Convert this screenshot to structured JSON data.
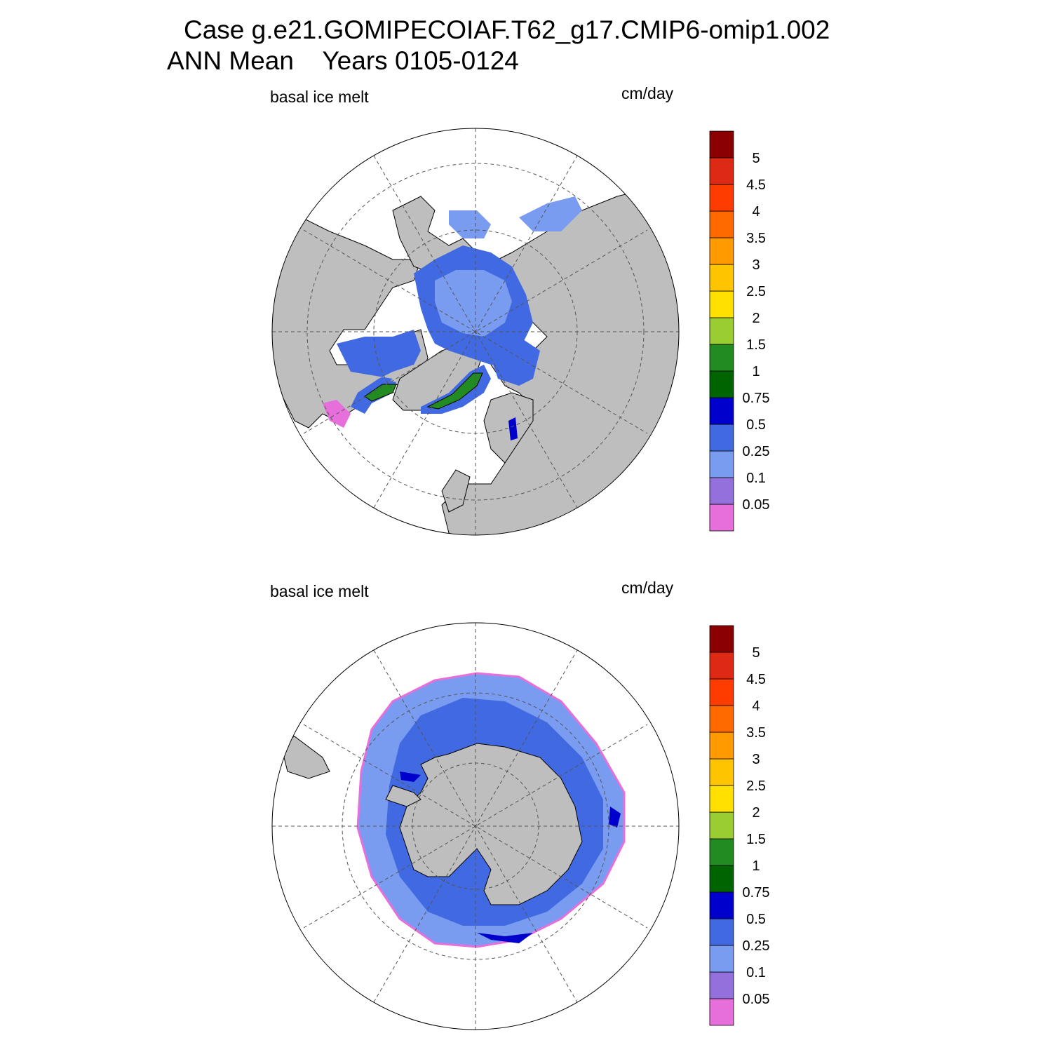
{
  "title": {
    "line1": "Case g.e21.GOMIPECOIAF.T62_g17.CMIP6-omip1.002",
    "line2": "ANN Mean    Years 0105-0124"
  },
  "colors": {
    "land": "#bebebe",
    "levels": [
      "#e66fdc",
      "#9370db",
      "#7a9cf0",
      "#4169e1",
      "#0000cd",
      "#006400",
      "#228b22",
      "#9acd32",
      "#ffe000",
      "#ffc400",
      "#ff9a00",
      "#ff6a00",
      "#ff3c00",
      "#de2a14",
      "#8b0000"
    ]
  },
  "colorbar": {
    "labels": [
      "0.05",
      "0.1",
      "0.25",
      "0.5",
      "0.75",
      "1",
      "1.5",
      "2",
      "2.5",
      "3",
      "3.5",
      "4",
      "4.5",
      "5"
    ]
  },
  "panels": [
    {
      "id": "north",
      "variable": "basal ice melt",
      "units": "cm/day",
      "hemisphere": "Arctic (north polar stereographic)"
    },
    {
      "id": "south",
      "variable": "basal ice melt",
      "units": "cm/day",
      "hemisphere": "Antarctic (south polar stereographic)"
    }
  ]
}
